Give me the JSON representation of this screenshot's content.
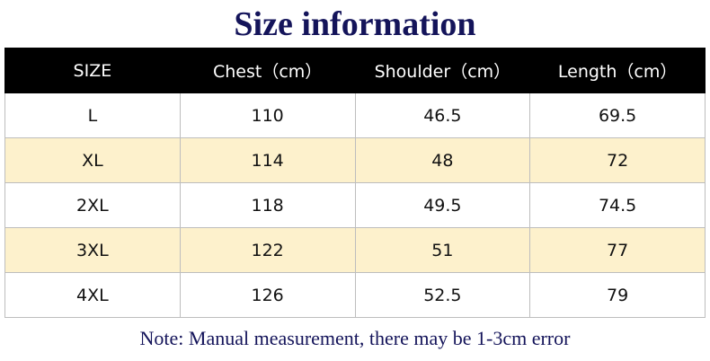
{
  "title": "Size information",
  "table": {
    "header": [
      "SIZE",
      "Chest（cm）",
      "Shoulder（cm）",
      "Length（cm）"
    ],
    "rows": [
      [
        "L",
        "110",
        "46.5",
        "69.5"
      ],
      [
        "XL",
        "114",
        "48",
        "72"
      ],
      [
        "2XL",
        "118",
        "49.5",
        "74.5"
      ],
      [
        "3XL",
        "122",
        "51",
        "77"
      ],
      [
        "4XL",
        "126",
        "52.5",
        "79"
      ]
    ]
  },
  "note": "Note: Manual measurement, there may be 1-3cm error"
}
